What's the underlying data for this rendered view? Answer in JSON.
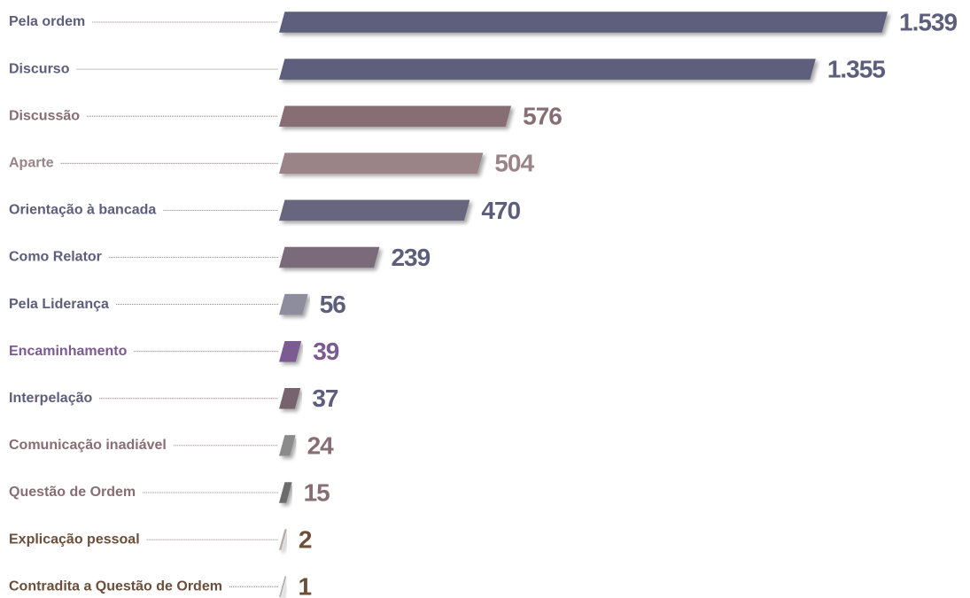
{
  "chart_data": {
    "type": "barh",
    "categories": [
      "Pela ordem",
      "Discurso",
      "Discussão",
      "Aparte",
      "Orientação à bancada",
      "Como Relator",
      "Pela Liderança",
      "Encaminhamento",
      "Interpelação",
      "Comunicação inadiável",
      "Questão de Ordem",
      "Explicação pessoal",
      "Contradita a Questão de Ordem"
    ],
    "values": [
      1539,
      1355,
      576,
      504,
      470,
      239,
      56,
      39,
      37,
      24,
      15,
      2,
      1
    ],
    "value_labels": [
      "1.539",
      "1.355",
      "576",
      "504",
      "470",
      "239",
      "56",
      "39",
      "37",
      "24",
      "15",
      "2",
      "1"
    ],
    "colors": [
      "#5d5e7b",
      "#5d5e7b",
      "#876e74",
      "#9a8487",
      "#67667f",
      "#7a6a7a",
      "#8e8d9e",
      "#7b5a92",
      "#76646e",
      "#8b8b8b",
      "#6c6c6c",
      "#b3aca4",
      "#b8b2ad"
    ],
    "label_colors": [
      "#5d5e7b",
      "#5d5e7b",
      "#876e74",
      "#9a8487",
      "#5d5e7b",
      "#5d5e7b",
      "#5d5e7b",
      "#7b5a92",
      "#5d5e7b",
      "#876e74",
      "#876e74",
      "#6b4f3a",
      "#6b4f3a"
    ]
  }
}
